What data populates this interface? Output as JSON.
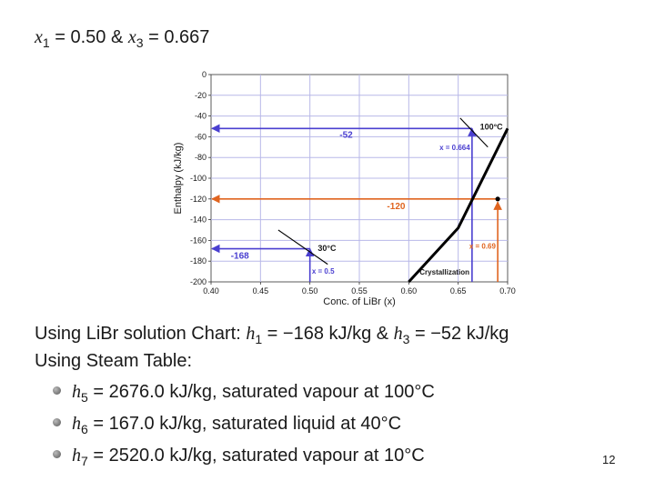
{
  "header": {
    "x1_var": "x",
    "x1_sub": "1",
    "x1_val": " = 0.50",
    "amp": " & ",
    "x3_var": "x",
    "x3_sub": "3",
    "x3_val": " = 0.667"
  },
  "chart_data": {
    "type": "line",
    "xlabel": "Conc. of LiBr (x)",
    "ylabel": "Enthalpy (kJ/kg)",
    "xlim": [
      0.4,
      0.7
    ],
    "ylim": [
      -200,
      0
    ],
    "x_ticks": [
      0.4,
      0.45,
      0.5,
      0.55,
      0.6,
      0.65,
      0.7
    ],
    "x_tick_labels": [
      "0.40",
      "0.45",
      "0.50",
      "0.55",
      "0.60",
      "0.65",
      "0.70"
    ],
    "y_ticks": [
      0,
      -20,
      -40,
      -60,
      -80,
      -100,
      -120,
      -140,
      -160,
      -180,
      -200
    ],
    "y_tick_labels": [
      "0",
      "-20",
      "-40",
      "-60",
      "-80",
      "-100",
      "-120",
      "-140",
      "-160",
      "-180",
      "-200"
    ],
    "grid": true,
    "series": [
      {
        "name": "Crystallization",
        "color": "#000000",
        "x": [
          0.6,
          0.65,
          0.7
        ],
        "y": [
          -200,
          -148,
          -52
        ]
      }
    ],
    "isotherm_labels": [
      {
        "text": "100°C",
        "x": 0.664,
        "y": -52
      },
      {
        "text": "30°C",
        "x": 0.5,
        "y": -168
      }
    ],
    "annotations": {
      "h_neg52": "-52",
      "h_neg120": "-120",
      "h_neg168": "-168",
      "x_0664": "x = 0.664",
      "x_05": "x = 0.5",
      "x_069": "x = 0.69",
      "crystallization": "Crystallization"
    },
    "colors": {
      "blue": "#4a3fd0",
      "orange": "#e0641f",
      "grid": "#b8b8e8"
    }
  },
  "line1": {
    "prefix": "Using LiBr solution Chart: ",
    "h1_var": "h",
    "h1_sub": "1",
    "h1_val": " = −168 kJ/kg & ",
    "h3_var": "h",
    "h3_sub": "3",
    "h3_val": " = −52 kJ/kg"
  },
  "line2": "Using Steam Table:",
  "bullets": [
    {
      "var": "h",
      "sub": "5",
      "text": " = 2676.0 kJ/kg, saturated vapour at 100°C"
    },
    {
      "var": "h",
      "sub": "6",
      "text": " = 167.0 kJ/kg, saturated liquid at 40°C"
    },
    {
      "var": "h",
      "sub": "7",
      "text": " = 2520.0 kJ/kg, saturated vapour at 10°C"
    }
  ],
  "page_number": "12"
}
